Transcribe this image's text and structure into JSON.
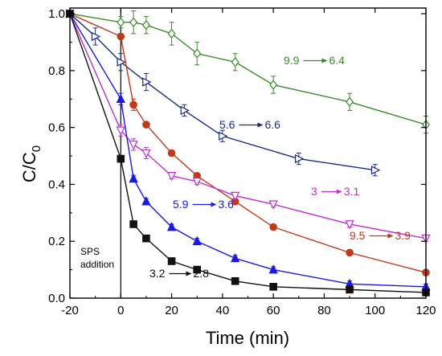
{
  "chart_data": {
    "type": "line",
    "xlabel": "Time (min)",
    "ylabel_main": "C/C",
    "ylabel_sub": "0",
    "xlim": [
      -20,
      120
    ],
    "ylim": [
      0,
      1.02
    ],
    "xticks": [
      -20,
      0,
      20,
      40,
      60,
      80,
      100,
      120
    ],
    "yticks": [
      0.0,
      0.2,
      0.4,
      0.6,
      0.8,
      1.0
    ],
    "ytick_labels": [
      "0.0",
      "0.2",
      "0.4",
      "0.6",
      "0.8",
      "1.0"
    ],
    "vline_x": 0,
    "vline_label_1": "SPS",
    "vline_label_2": "addition",
    "grid": false,
    "series": [
      {
        "name": "9.9 → 6.4",
        "label_start": "9.9",
        "label_end": "6.4",
        "color": "#3a8a2a",
        "marker": "diamond-open",
        "x": [
          -20,
          0,
          5,
          10,
          20,
          30,
          45,
          60,
          90,
          120
        ],
        "y": [
          1.0,
          0.97,
          0.97,
          0.96,
          0.93,
          0.86,
          0.83,
          0.75,
          0.69,
          0.61
        ],
        "err": [
          0.01,
          0.02,
          0.04,
          0.03,
          0.04,
          0.04,
          0.03,
          0.03,
          0.03,
          0.03
        ]
      },
      {
        "name": "5.6 → 6.6",
        "label_start": "5.6",
        "label_end": "6.6",
        "color": "#1a2a8a",
        "marker": "triangle-right-open",
        "x": [
          -20,
          -10,
          0,
          10,
          25,
          40,
          70,
          100
        ],
        "y": [
          1.0,
          0.92,
          0.83,
          0.76,
          0.66,
          0.57,
          0.49,
          0.45
        ],
        "err": [
          0.01,
          0.03,
          0.03,
          0.03,
          0.02,
          0.02,
          0.02,
          0.02
        ]
      },
      {
        "name": "9.5 → 3.9",
        "label_start": "9.5",
        "label_end": "3.9",
        "color": "#c0391b",
        "marker": "circle-filled",
        "x": [
          -20,
          0,
          5,
          10,
          20,
          30,
          45,
          60,
          90,
          120
        ],
        "y": [
          1.0,
          0.92,
          0.68,
          0.61,
          0.51,
          0.43,
          0.34,
          0.25,
          0.16,
          0.09
        ],
        "err": [
          0.01,
          0.01,
          0.02,
          0.01,
          0.01,
          0.01,
          0.01,
          0.01,
          0.01,
          0.01
        ]
      },
      {
        "name": "3 → 3.1",
        "label_start": "3",
        "label_end": "3.1",
        "color": "#c030d0",
        "marker": "triangle-down-open",
        "x": [
          -20,
          0,
          5,
          10,
          20,
          30,
          45,
          60,
          90,
          120
        ],
        "y": [
          1.0,
          0.59,
          0.54,
          0.51,
          0.43,
          0.41,
          0.36,
          0.33,
          0.26,
          0.21
        ],
        "err": [
          0.01,
          0.02,
          0.02,
          0.02,
          0.01,
          0.01,
          0.01,
          0.01,
          0.01,
          0.01
        ]
      },
      {
        "name": "5.9 → 3.6",
        "label_start": "5.9",
        "label_end": "3.6",
        "color": "#1a1ae0",
        "marker": "triangle-up-filled",
        "x": [
          -20,
          0,
          5,
          10,
          20,
          30,
          45,
          60,
          90,
          120
        ],
        "y": [
          1.0,
          0.7,
          0.42,
          0.34,
          0.25,
          0.2,
          0.14,
          0.1,
          0.05,
          0.04
        ],
        "err": [
          0.01,
          0.02,
          0.01,
          0.01,
          0.01,
          0.01,
          0.01,
          0.01,
          0.01,
          0.01
        ]
      },
      {
        "name": "3.2 → 2.8",
        "label_start": "3.2",
        "label_end": "2.8",
        "color": "#111111",
        "marker": "square-filled",
        "x": [
          -20,
          0,
          5,
          10,
          20,
          30,
          45,
          60,
          90,
          120
        ],
        "y": [
          1.0,
          0.49,
          0.26,
          0.21,
          0.13,
          0.1,
          0.06,
          0.04,
          0.03,
          0.02
        ],
        "err": [
          0.01,
          0.01,
          0.01,
          0.01,
          0.01,
          0.01,
          0.01,
          0.01,
          0.01,
          0.01
        ]
      }
    ]
  }
}
